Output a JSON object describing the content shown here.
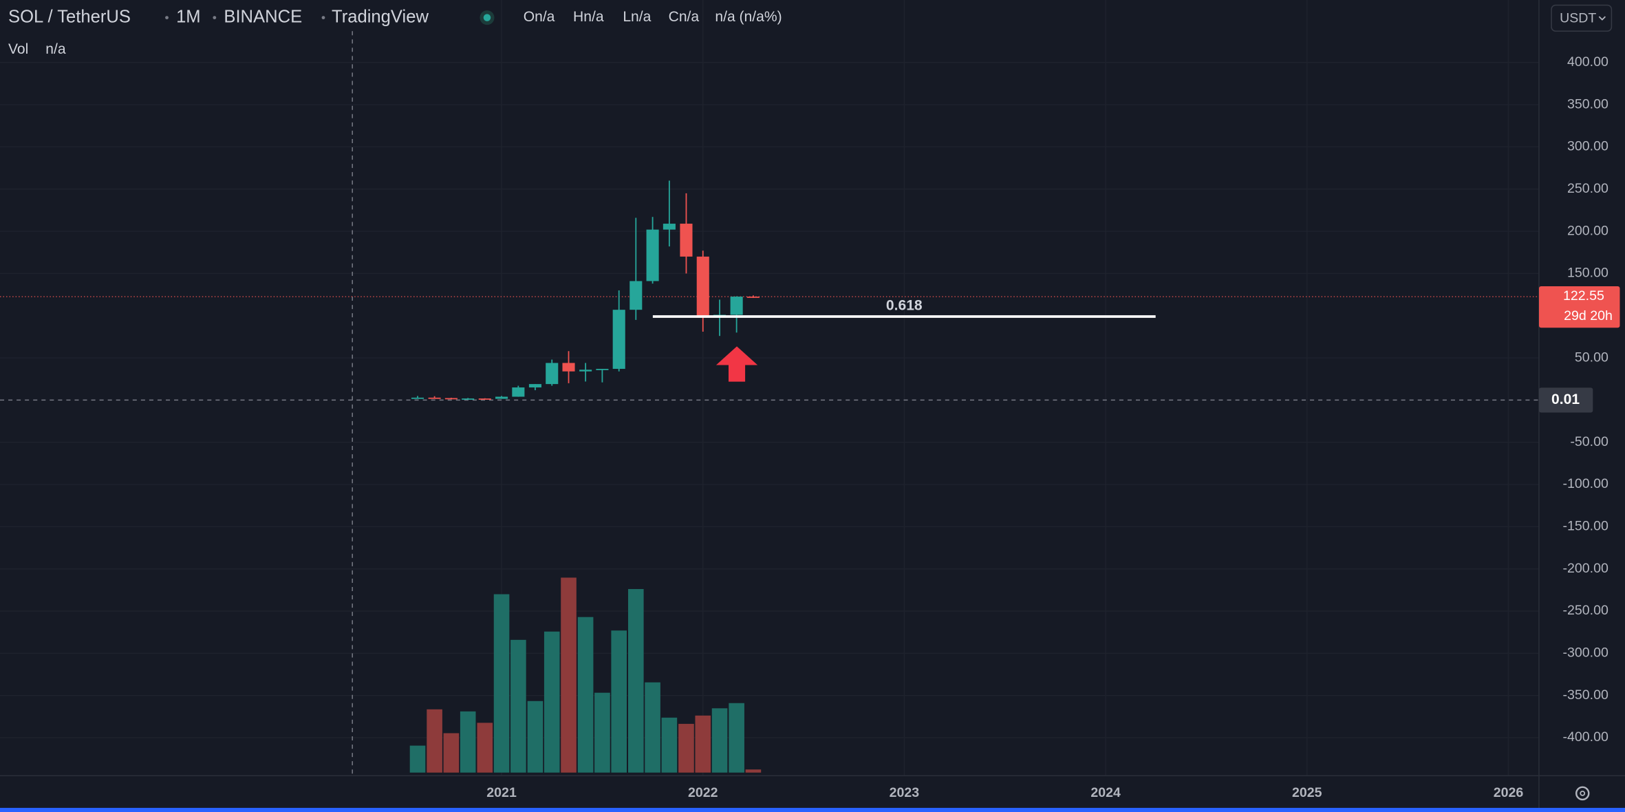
{
  "ui": {
    "symbol": "SOL / TetherUS",
    "interval": "1M",
    "exchange": "BINANCE",
    "source": "TradingView",
    "ohlc": [
      "On/a",
      "Hn/a",
      "Ln/a",
      "Cn/a",
      "n/a (n/a%)"
    ],
    "volume_label": "Vol",
    "volume_value": "n/a",
    "currency": "USDT",
    "countdown": "29d 20h"
  },
  "chart_data": {
    "type": "candlestick",
    "x": [
      2020.583,
      2020.667,
      2020.75,
      2020.833,
      2020.917,
      2021,
      2021.083,
      2021.167,
      2021.25,
      2021.333,
      2021.417,
      2021.5,
      2021.583,
      2021.667,
      2021.75,
      2021.833,
      2021.917,
      2022,
      2022.083,
      2022.167,
      2022.25
    ],
    "open": [
      2.0,
      2.9,
      2.4,
      1.5,
      1.9,
      1.5,
      4.0,
      15,
      19,
      44,
      34,
      36,
      37,
      107,
      141,
      202,
      209,
      170,
      98,
      101,
      122.6
    ],
    "high": [
      4.9,
      4.6,
      2.8,
      2.5,
      2.2,
      4.9,
      17,
      19,
      48,
      58,
      44,
      37,
      130,
      216,
      217,
      260,
      245,
      177,
      119,
      123,
      124
    ],
    "low": [
      1.9,
      2.3,
      1.2,
      1.4,
      1.3,
      1.5,
      3.9,
      11.7,
      17,
      20,
      22,
      21,
      34,
      95,
      138,
      182,
      150,
      81,
      76,
      80,
      121
    ],
    "close": [
      2.9,
      2.4,
      1.5,
      1.9,
      1.5,
      4.0,
      15,
      19,
      44,
      34,
      36,
      37,
      107,
      141,
      202,
      209,
      170,
      98,
      101,
      122.6,
      122.55
    ],
    "volume": [
      13,
      30.5,
      19,
      29.5,
      24,
      86,
      64,
      34.5,
      68,
      94,
      75,
      38.5,
      68.5,
      88.5,
      43.5,
      26.5,
      23.5,
      27.5,
      31,
      33.5,
      1.5
    ],
    "up_color": "#26a69a",
    "down_color": "#ef5350",
    "volume_up_color": "#1f6e66",
    "volume_down_color": "#8e3b3b",
    "xlim": [
      2018.509,
      2026.152
    ],
    "xticks": [
      2021,
      2022,
      2023,
      2024,
      2025,
      2026
    ],
    "ylim": [
      -445,
      474
    ],
    "yticks": [
      {
        "value": 400,
        "label": "400.00"
      },
      {
        "value": 350,
        "label": "350.00"
      },
      {
        "value": 300,
        "label": "300.00"
      },
      {
        "value": 250,
        "label": "250.00"
      },
      {
        "value": 200,
        "label": "200.00"
      },
      {
        "value": 150,
        "label": "150.00"
      },
      {
        "value": 50,
        "label": "50.00"
      },
      {
        "value": -50,
        "label": "-50.00"
      },
      {
        "value": -100,
        "label": "-100.00"
      },
      {
        "value": -150,
        "label": "-150.00"
      },
      {
        "value": -200,
        "label": "-200.00"
      },
      {
        "value": -250,
        "label": "-250.00"
      },
      {
        "value": -300,
        "label": "-300.00"
      },
      {
        "value": -350,
        "label": "-350.00"
      },
      {
        "value": -400,
        "label": "-400.00"
      }
    ],
    "grid": true,
    "last_price": 122.55,
    "crosshair": {
      "price": 0.01,
      "time": 2020.259
    },
    "annotations": [
      {
        "label": "0.618",
        "value": 99,
        "x": [
          2021.751,
          2024.248
        ]
      }
    ]
  }
}
